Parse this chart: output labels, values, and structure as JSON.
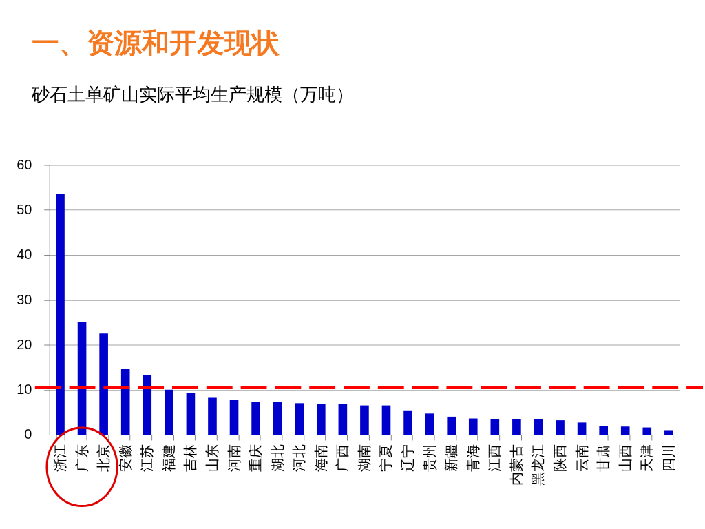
{
  "chart_data": {
    "type": "bar",
    "title": "一、资源和开发现状",
    "subtitle": "砂石土单矿山实际平均生产规模（万吨）",
    "categories": [
      "浙江",
      "广东",
      "北京",
      "安徽",
      "江苏",
      "福建",
      "吉林",
      "山东",
      "河南",
      "重庆",
      "湖北",
      "河北",
      "海南",
      "广西",
      "湖南",
      "宁夏",
      "辽宁",
      "贵州",
      "新疆",
      "青海",
      "江西",
      "内蒙古",
      "黑龙江",
      "陕西",
      "云南",
      "甘肃",
      "山西",
      "天津",
      "四川"
    ],
    "values": [
      53.6,
      25.0,
      22.5,
      14.7,
      13.2,
      10.0,
      9.3,
      8.2,
      7.7,
      7.3,
      7.2,
      7.0,
      6.8,
      6.8,
      6.5,
      6.5,
      5.4,
      4.7,
      4.0,
      3.6,
      3.4,
      3.4,
      3.4,
      3.2,
      2.7,
      1.9,
      1.8,
      1.6,
      1.0
    ],
    "color": "#0000cc",
    "ylim": [
      0,
      60
    ],
    "yticks": [
      0,
      10,
      20,
      30,
      40,
      50,
      60
    ],
    "grid": "y",
    "ref_lines": [
      {
        "axis": "y",
        "value": 10.5,
        "color": "#ff0000",
        "line_style": "dashed"
      }
    ]
  }
}
